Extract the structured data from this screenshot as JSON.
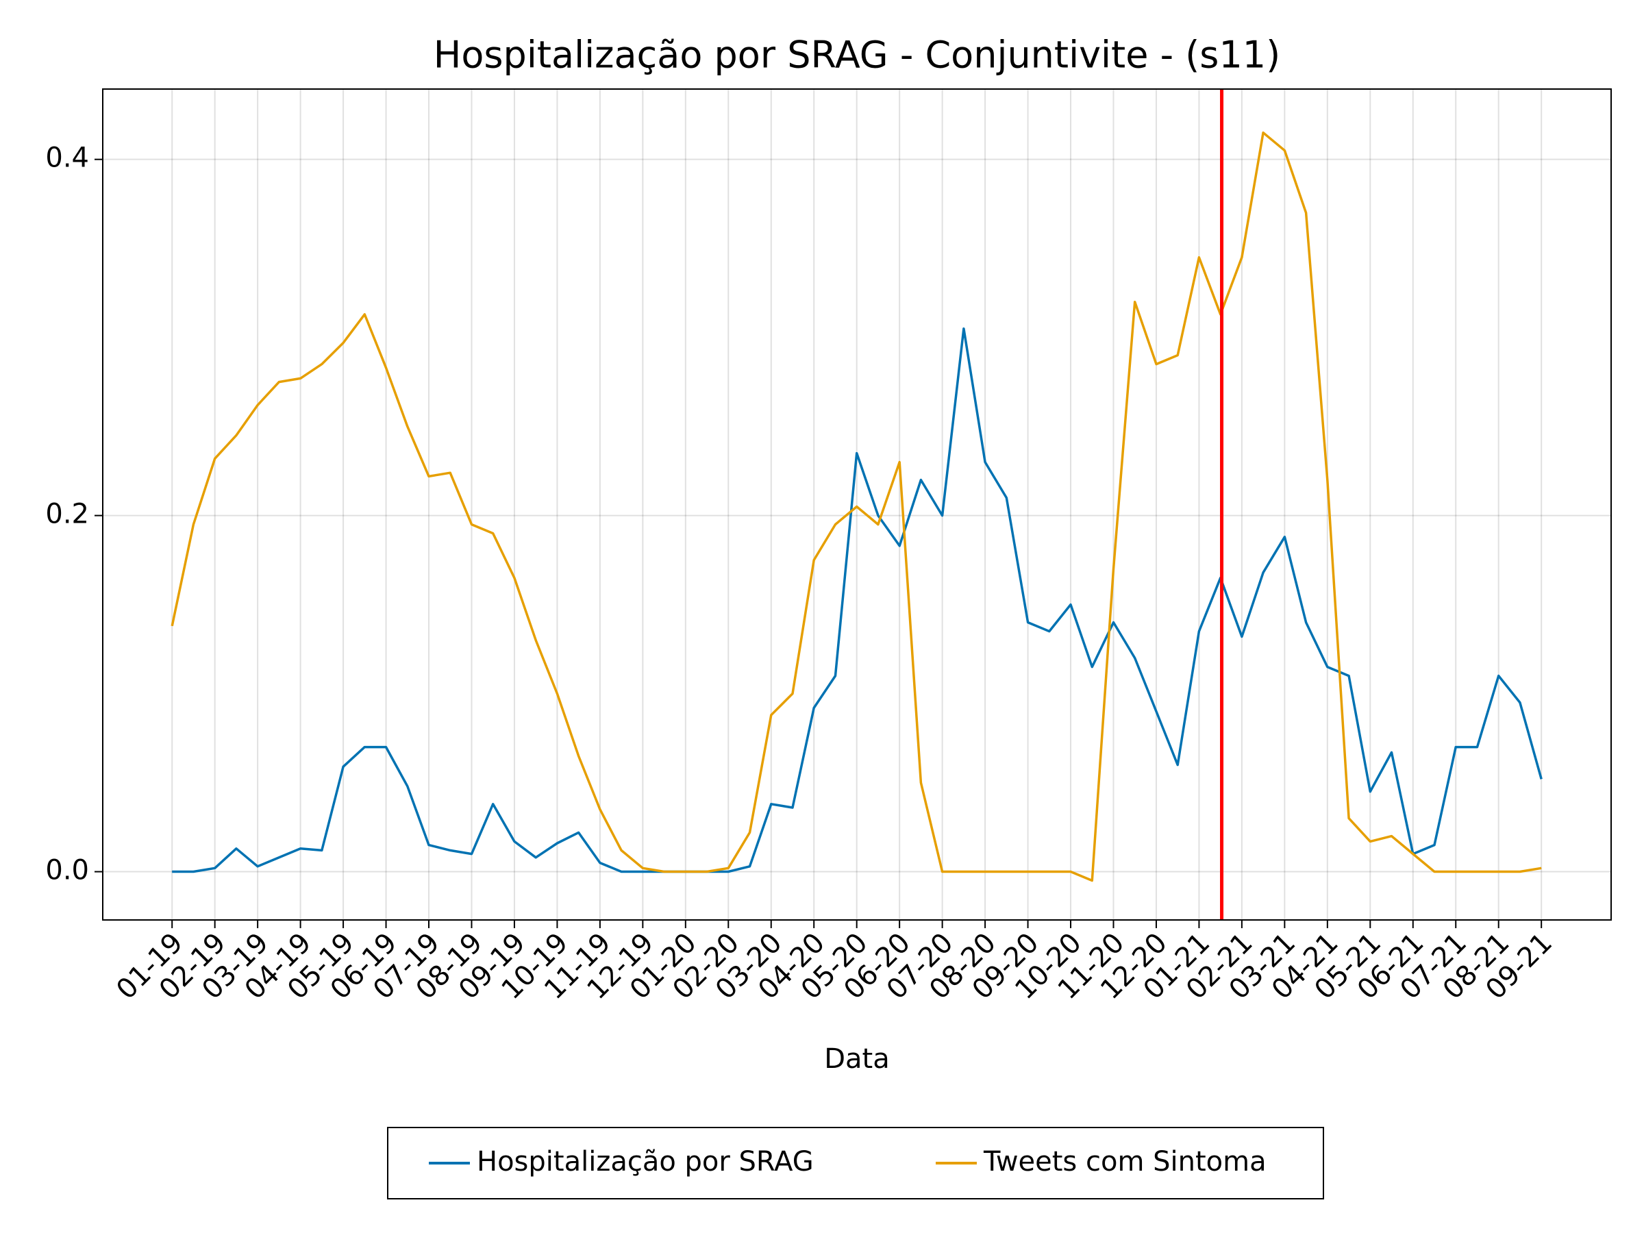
{
  "chart_data": {
    "type": "line",
    "title": "Hospitalização por SRAG - Conjuntivite - (s11)",
    "x_label": "Data",
    "x": [
      0,
      0.5,
      1,
      1.5,
      2,
      2.5,
      3,
      3.5,
      4,
      4.5,
      5,
      5.5,
      6,
      6.5,
      7,
      7.5,
      8,
      8.5,
      9,
      9.5,
      10,
      10.5,
      11,
      11.5,
      12,
      12.5,
      13,
      13.5,
      14,
      14.5,
      15,
      15.5,
      16,
      16.5,
      17,
      17.5,
      18,
      18.5,
      19,
      19.5,
      20,
      20.5,
      21,
      21.5,
      22,
      22.5,
      23,
      23.5,
      24,
      24.5,
      25,
      25.5,
      26,
      26.5,
      27,
      27.5,
      28,
      28.5,
      29,
      29.5,
      30,
      30.5,
      31,
      31.5,
      32
    ],
    "series": [
      {
        "name": "Hospitalização por SRAG",
        "color": "#0072b2",
        "values": [
          0,
          0,
          0.002,
          0.013,
          0.003,
          0.008,
          0.013,
          0.012,
          0.059,
          0.07,
          0.07,
          0.048,
          0.015,
          0.012,
          0.01,
          0.038,
          0.017,
          0.008,
          0.016,
          0.022,
          0.005,
          0,
          0,
          0,
          0,
          0,
          0,
          0.003,
          0.038,
          0.036,
          0.092,
          0.11,
          0.235,
          0.2,
          0.183,
          0.22,
          0.2,
          0.305,
          0.23,
          0.21,
          0.14,
          0.135,
          0.15,
          0.115,
          0.14,
          0.12,
          0.09,
          0.06,
          0.135,
          0.165,
          0.132,
          0.168,
          0.188,
          0.14,
          0.115,
          0.11,
          0.045,
          0.067,
          0.01,
          0.015,
          0.07,
          0.07,
          0.11,
          0.095,
          0.052
        ]
      },
      {
        "name": "Tweets com Sintoma",
        "color": "#e69f00",
        "values": [
          0.138,
          0.195,
          0.232,
          0.245,
          0.262,
          0.275,
          0.277,
          0.285,
          0.297,
          0.313,
          0.283,
          0.25,
          0.222,
          0.224,
          0.195,
          0.19,
          0.165,
          0.13,
          0.1,
          0.065,
          0.035,
          0.012,
          0.002,
          0,
          0,
          0,
          0.002,
          0.022,
          0.088,
          0.1,
          0.175,
          0.195,
          0.205,
          0.195,
          0.23,
          0.05,
          0,
          0,
          0,
          0,
          0,
          0,
          0,
          -0.005,
          0.17,
          0.32,
          0.285,
          0.29,
          0.345,
          0.313,
          0.345,
          0.415,
          0.405,
          0.37,
          0.22,
          0.03,
          0.017,
          0.02,
          0.01,
          0,
          0,
          0,
          0,
          0,
          0.002
        ]
      }
    ],
    "xlim": [
      -1.62,
      33.63
    ],
    "xticks": [
      {
        "value": 0,
        "label": "01-19"
      },
      {
        "value": 1,
        "label": "02-19"
      },
      {
        "value": 2,
        "label": "03-19"
      },
      {
        "value": 3,
        "label": "04-19"
      },
      {
        "value": 4,
        "label": "05-19"
      },
      {
        "value": 5,
        "label": "06-19"
      },
      {
        "value": 6,
        "label": "07-19"
      },
      {
        "value": 7,
        "label": "08-19"
      },
      {
        "value": 8,
        "label": "09-19"
      },
      {
        "value": 9,
        "label": "10-19"
      },
      {
        "value": 10,
        "label": "11-19"
      },
      {
        "value": 11,
        "label": "12-19"
      },
      {
        "value": 12,
        "label": "01-20"
      },
      {
        "value": 13,
        "label": "02-20"
      },
      {
        "value": 14,
        "label": "03-20"
      },
      {
        "value": 15,
        "label": "04-20"
      },
      {
        "value": 16,
        "label": "05-20"
      },
      {
        "value": 17,
        "label": "06-20"
      },
      {
        "value": 18,
        "label": "07-20"
      },
      {
        "value": 19,
        "label": "08-20"
      },
      {
        "value": 20,
        "label": "09-20"
      },
      {
        "value": 21,
        "label": "10-20"
      },
      {
        "value": 22,
        "label": "11-20"
      },
      {
        "value": 23,
        "label": "12-20"
      },
      {
        "value": 24,
        "label": "01-21"
      },
      {
        "value": 25,
        "label": "02-21"
      },
      {
        "value": 26,
        "label": "03-21"
      },
      {
        "value": 27,
        "label": "04-21"
      },
      {
        "value": 28,
        "label": "05-21"
      },
      {
        "value": 29,
        "label": "06-21"
      },
      {
        "value": 30,
        "label": "07-21"
      },
      {
        "value": 31,
        "label": "08-21"
      },
      {
        "value": 32,
        "label": "09-21"
      }
    ],
    "ylim": [
      -0.0271,
      0.4395
    ],
    "yticks": [
      {
        "value": 0,
        "label": "0.0"
      },
      {
        "value": 0.2,
        "label": "0.2"
      },
      {
        "value": 0.4,
        "label": "0.4"
      }
    ],
    "grid": true,
    "vline": {
      "x": 24.53,
      "color": "#ff0000"
    },
    "legend": "bottom"
  }
}
